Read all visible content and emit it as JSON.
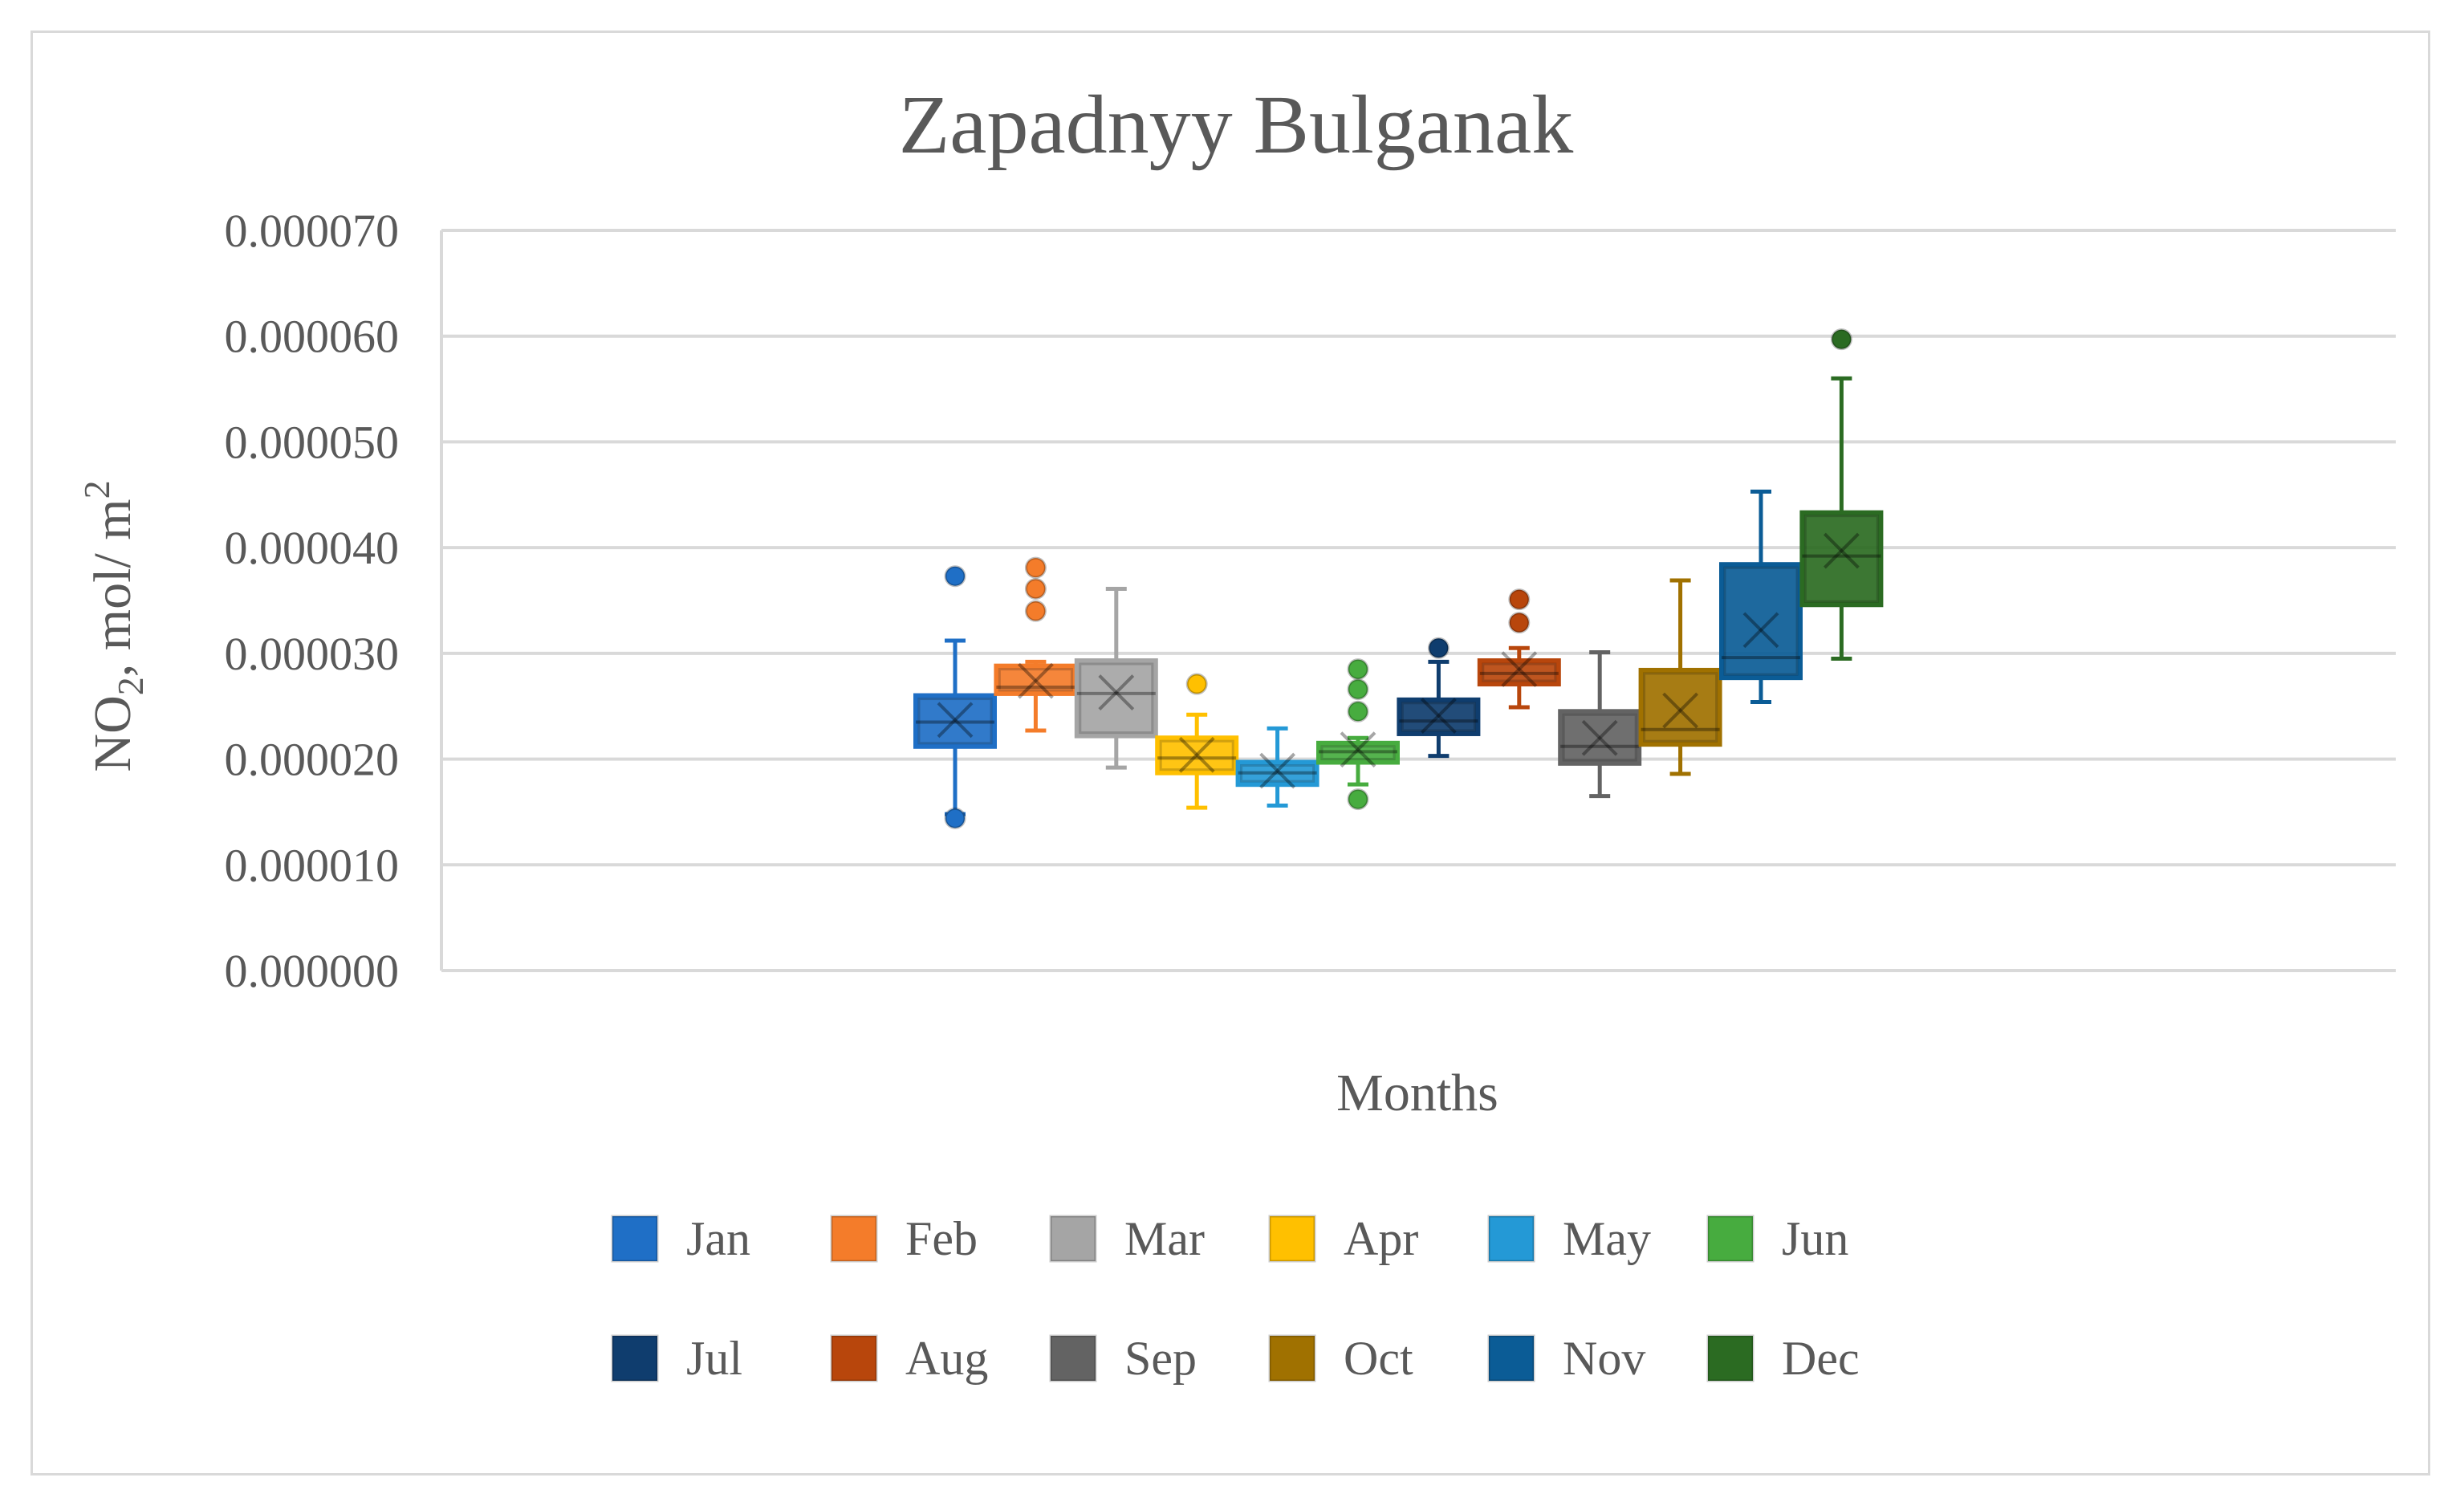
{
  "chart_data": {
    "type": "box",
    "title": "Zapadnyy Bulganak",
    "xlabel": "Months",
    "ylabel": {
      "base": "NO",
      "sub": "2",
      "rest": ", mol/ m",
      "sup": "2"
    },
    "ylim": [
      0,
      7e-05
    ],
    "yticks": [
      "0.000000",
      "0.000010",
      "0.000020",
      "0.000030",
      "0.000040",
      "0.000050",
      "0.000060",
      "0.000070"
    ],
    "grid": true,
    "legend_position": "bottom",
    "series": [
      {
        "name": "Jan",
        "color": "#1f6fc6",
        "min": 1.48e-05,
        "q1": 2.12e-05,
        "median": 2.35e-05,
        "q3": 2.6e-05,
        "max": 3.12e-05,
        "mean": 2.37e-05,
        "outliers": [
          3.73e-05,
          1.44e-05
        ]
      },
      {
        "name": "Feb",
        "color": "#f47c2a",
        "min": 2.27e-05,
        "q1": 2.62e-05,
        "median": 2.68e-05,
        "q3": 2.88e-05,
        "max": 2.92e-05,
        "mean": 2.74e-05,
        "outliers": [
          3.81e-05,
          3.61e-05,
          3.4e-05
        ]
      },
      {
        "name": "Mar",
        "color": "#a5a5a5",
        "min": 1.92e-05,
        "q1": 2.22e-05,
        "median": 2.62e-05,
        "q3": 2.93e-05,
        "max": 3.61e-05,
        "mean": 2.63e-05,
        "outliers": []
      },
      {
        "name": "Apr",
        "color": "#ffc000",
        "min": 1.54e-05,
        "q1": 1.87e-05,
        "median": 2.01e-05,
        "q3": 2.2e-05,
        "max": 2.42e-05,
        "mean": 2.04e-05,
        "outliers": [
          2.71e-05
        ]
      },
      {
        "name": "May",
        "color": "#2499d6",
        "min": 1.56e-05,
        "q1": 1.76e-05,
        "median": 1.87e-05,
        "q3": 1.97e-05,
        "max": 2.29e-05,
        "mean": 1.89e-05,
        "outliers": []
      },
      {
        "name": "Jun",
        "color": "#47ac3f",
        "min": 1.76e-05,
        "q1": 1.97e-05,
        "median": 2.07e-05,
        "q3": 2.15e-05,
        "max": 2.2e-05,
        "mean": 2.09e-05,
        "outliers": [
          2.85e-05,
          2.66e-05,
          2.45e-05,
          1.62e-05
        ]
      },
      {
        "name": "Jul",
        "color": "#0f3d6e",
        "min": 2.03e-05,
        "q1": 2.24e-05,
        "median": 2.36e-05,
        "q3": 2.56e-05,
        "max": 2.92e-05,
        "mean": 2.41e-05,
        "outliers": [
          3.05e-05
        ]
      },
      {
        "name": "Aug",
        "color": "#b8460c",
        "min": 2.49e-05,
        "q1": 2.71e-05,
        "median": 2.81e-05,
        "q3": 2.93e-05,
        "max": 3.05e-05,
        "mean": 2.85e-05,
        "outliers": [
          3.51e-05,
          3.29e-05
        ]
      },
      {
        "name": "Sep",
        "color": "#636363",
        "min": 1.65e-05,
        "q1": 1.96e-05,
        "median": 2.12e-05,
        "q3": 2.45e-05,
        "max": 3.01e-05,
        "mean": 2.2e-05,
        "outliers": []
      },
      {
        "name": "Oct",
        "color": "#a07100",
        "min": 1.86e-05,
        "q1": 2.14e-05,
        "median": 2.28e-05,
        "q3": 2.84e-05,
        "max": 3.69e-05,
        "mean": 2.46e-05,
        "outliers": []
      },
      {
        "name": "Nov",
        "color": "#0b5c96",
        "min": 2.54e-05,
        "q1": 2.77e-05,
        "median": 2.96e-05,
        "q3": 3.84e-05,
        "max": 4.53e-05,
        "mean": 3.22e-05,
        "outliers": []
      },
      {
        "name": "Dec",
        "color": "#2b6b22",
        "min": 2.95e-05,
        "q1": 3.46e-05,
        "median": 3.92e-05,
        "q3": 4.33e-05,
        "max": 5.6e-05,
        "mean": 3.97e-05,
        "outliers": [
          5.97e-05
        ]
      }
    ]
  }
}
